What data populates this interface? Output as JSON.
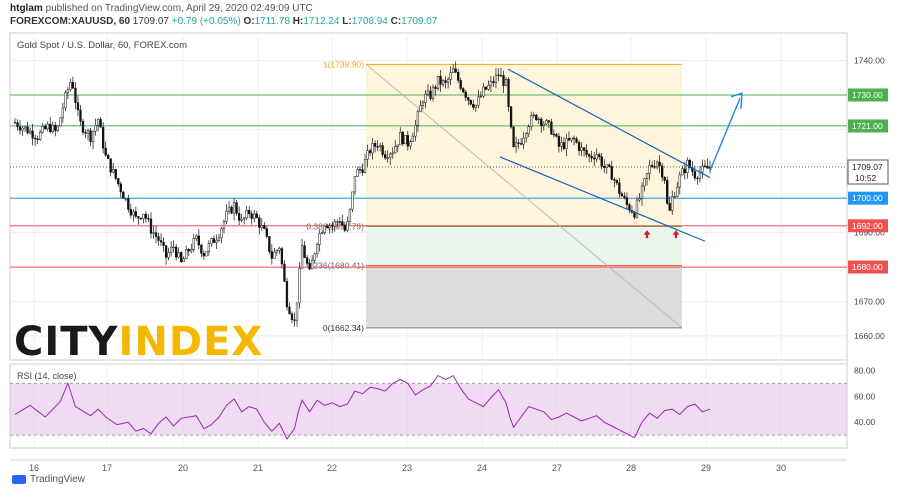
{
  "header": {
    "author": "htglam",
    "published": "published on TradingView.com, April 29, 2020 02:49:09 UTC",
    "symbol": "FOREXCOM:XAUUSD, 60",
    "last": "1709.07",
    "change": "+0.79 (+0.05%)",
    "ohlc_o_label": "O:",
    "ohlc_o": "1711.78",
    "ohlc_h_label": "H:",
    "ohlc_h": "1712.24",
    "ohlc_l_label": "L:",
    "ohlc_l": "1708.94",
    "ohlc_c_label": "C:",
    "ohlc_c": "1709.07"
  },
  "chart_title": "Gold Spot / U.S. Dollar, 60, FOREX.com",
  "logo_text": "CITYINDEX",
  "footer_brand": "TradingView",
  "colors": {
    "up": "#26a69a",
    "down": "#ef5350",
    "green_line": "#4caf50",
    "blue_line": "#2196f3",
    "red_line": "#ef5350",
    "rsi": "#9c27b0",
    "rsi_band": "#e1bee7",
    "fib_top": "#fff3d6",
    "fib_mid": "#e8f5e9",
    "fib_bot": "#d6d6d6",
    "arrow": "#1e88e5",
    "logo_dark": "#1a1a1a",
    "logo_yellow": "#f5b800"
  },
  "chart_data": [
    {
      "type": "candlestick",
      "title": "Gold Spot / U.S. Dollar, 60, FOREX.com",
      "ylim": [
        1653,
        1748
      ],
      "y_ticks": [
        "1740.00",
        "1730.00",
        "1720.00",
        "1710.00",
        "1700.00",
        "1690.00",
        "1680.00",
        "1670.00",
        "1660.00"
      ],
      "x_ticks": [
        "16",
        "17",
        "20",
        "21",
        "22",
        "23",
        "24",
        "27",
        "28",
        "29",
        "30"
      ],
      "current_price": "1709.07",
      "countdown": "10:52",
      "horizontal_levels": [
        {
          "label": "1730.00",
          "value": 1730.0,
          "color": "#4caf50"
        },
        {
          "label": "1721.00",
          "value": 1721.0,
          "color": "#4caf50"
        },
        {
          "label": "1700.00",
          "value": 1700.0,
          "color": "#2196f3"
        },
        {
          "label": "1692.00",
          "value": 1692.0,
          "color": "#ef5350"
        },
        {
          "label": "1680.00",
          "value": 1680.0,
          "color": "#ef5350"
        }
      ],
      "fib_labels": [
        {
          "text": "1(1738.90)",
          "value": 1738.9
        },
        {
          "text": "0.382(1691.79)",
          "value": 1691.79
        },
        {
          "text": "0.236(1680.41)",
          "value": 1680.41
        },
        {
          "text": "0(1662.34)",
          "value": 1662.34
        }
      ],
      "price_path": [
        [
          0,
          1722
        ],
        [
          1.5,
          1720
        ],
        [
          3,
          1718
        ],
        [
          4.5,
          1721
        ],
        [
          5.5,
          1719
        ],
        [
          6.5,
          1728
        ],
        [
          7.5,
          1735
        ],
        [
          8.5,
          1722
        ],
        [
          10,
          1718
        ],
        [
          11,
          1723
        ],
        [
          12,
          1712
        ],
        [
          13.5,
          1705
        ],
        [
          15,
          1698
        ],
        [
          16,
          1694
        ],
        [
          17,
          1696
        ],
        [
          18,
          1691
        ],
        [
          19,
          1688
        ],
        [
          20,
          1683
        ],
        [
          21,
          1686
        ],
        [
          22,
          1681
        ],
        [
          23,
          1685
        ],
        [
          24,
          1688
        ],
        [
          25,
          1684
        ],
        [
          26,
          1687
        ],
        [
          27,
          1690
        ],
        [
          28,
          1695
        ],
        [
          29,
          1698
        ],
        [
          30,
          1693
        ],
        [
          31,
          1696
        ],
        [
          32,
          1694
        ],
        [
          33,
          1690
        ],
        [
          34,
          1683
        ],
        [
          35,
          1686
        ],
        [
          36,
          1670
        ],
        [
          37,
          1664
        ],
        [
          37.5,
          1674
        ],
        [
          38,
          1686
        ],
        [
          39,
          1678
        ],
        [
          40,
          1688
        ],
        [
          41,
          1693
        ],
        [
          42,
          1692
        ],
        [
          43,
          1694
        ],
        [
          43.8,
          1690
        ],
        [
          44.5,
          1698
        ],
        [
          45,
          1707
        ],
        [
          46,
          1709
        ],
        [
          47,
          1714
        ],
        [
          48,
          1716
        ],
        [
          49,
          1713
        ],
        [
          50,
          1714
        ],
        [
          51,
          1718
        ],
        [
          52,
          1716
        ],
        [
          53,
          1721
        ],
        [
          54,
          1729
        ],
        [
          55,
          1730
        ],
        [
          56,
          1734
        ],
        [
          57,
          1733
        ],
        [
          58,
          1737
        ],
        [
          59,
          1733
        ],
        [
          60,
          1729
        ],
        [
          61,
          1727
        ],
        [
          62,
          1731
        ],
        [
          63,
          1733
        ],
        [
          64,
          1736
        ],
        [
          65,
          1733
        ],
        [
          65.5,
          1722
        ],
        [
          66,
          1714
        ],
        [
          67,
          1717
        ],
        [
          68,
          1722
        ],
        [
          69,
          1724
        ],
        [
          70,
          1722
        ],
        [
          71,
          1720
        ],
        [
          72,
          1715
        ],
        [
          73,
          1716
        ],
        [
          74,
          1717
        ],
        [
          75,
          1714
        ],
        [
          76,
          1712
        ],
        [
          77,
          1713
        ],
        [
          78,
          1709
        ],
        [
          79,
          1707
        ],
        [
          80,
          1702
        ],
        [
          81,
          1698
        ],
        [
          82,
          1696
        ],
        [
          83,
          1702
        ],
        [
          84,
          1709
        ],
        [
          85,
          1711
        ],
        [
          86,
          1706
        ],
        [
          86.5,
          1694
        ],
        [
          87,
          1700
        ],
        [
          88,
          1706
        ],
        [
          89,
          1710
        ],
        [
          90,
          1707
        ],
        [
          91,
          1708
        ],
        [
          92,
          1709
        ]
      ]
    },
    {
      "type": "line",
      "title": "RSI (14, close)",
      "ylim": [
        20,
        85
      ],
      "y_ticks": [
        "80.00",
        "60.00",
        "40.00"
      ],
      "band": [
        30,
        70
      ],
      "values": [
        [
          0,
          46
        ],
        [
          2,
          53
        ],
        [
          4,
          44
        ],
        [
          6,
          56
        ],
        [
          7,
          70
        ],
        [
          8,
          52
        ],
        [
          10,
          45
        ],
        [
          11,
          50
        ],
        [
          12,
          44
        ],
        [
          13.5,
          38
        ],
        [
          15,
          40
        ],
        [
          16,
          33
        ],
        [
          17,
          35
        ],
        [
          18,
          31
        ],
        [
          19,
          39
        ],
        [
          20,
          44
        ],
        [
          21,
          37
        ],
        [
          22,
          43
        ],
        [
          24,
          45
        ],
        [
          25,
          35
        ],
        [
          26,
          38
        ],
        [
          27,
          44
        ],
        [
          28,
          53
        ],
        [
          29,
          58
        ],
        [
          30,
          48
        ],
        [
          31,
          52
        ],
        [
          32,
          50
        ],
        [
          33,
          40
        ],
        [
          34,
          33
        ],
        [
          35,
          39
        ],
        [
          36,
          27
        ],
        [
          37,
          35
        ],
        [
          37.5,
          48
        ],
        [
          38,
          57
        ],
        [
          39,
          48
        ],
        [
          40,
          57
        ],
        [
          41,
          53
        ],
        [
          42,
          55
        ],
        [
          43,
          52
        ],
        [
          44,
          54
        ],
        [
          45,
          64
        ],
        [
          46,
          62
        ],
        [
          47,
          67
        ],
        [
          48,
          66
        ],
        [
          49,
          64
        ],
        [
          50,
          70
        ],
        [
          51,
          73
        ],
        [
          52,
          70
        ],
        [
          53,
          61
        ],
        [
          54,
          65
        ],
        [
          55,
          68
        ],
        [
          56,
          76
        ],
        [
          57,
          73
        ],
        [
          58,
          76
        ],
        [
          59,
          66
        ],
        [
          60,
          58
        ],
        [
          61,
          55
        ],
        [
          62,
          52
        ],
        [
          63,
          59
        ],
        [
          64,
          65
        ],
        [
          65,
          55
        ],
        [
          65.5,
          44
        ],
        [
          66,
          36
        ],
        [
          67,
          44
        ],
        [
          68,
          52
        ],
        [
          69,
          50
        ],
        [
          70,
          48
        ],
        [
          71,
          42
        ],
        [
          72,
          44
        ],
        [
          73,
          47
        ],
        [
          74,
          44
        ],
        [
          75,
          41
        ],
        [
          76,
          43
        ],
        [
          77,
          45
        ],
        [
          78,
          40
        ],
        [
          79,
          37
        ],
        [
          80,
          34
        ],
        [
          81,
          31
        ],
        [
          82,
          28
        ],
        [
          83,
          40
        ],
        [
          84,
          47
        ],
        [
          85,
          43
        ],
        [
          86,
          49
        ],
        [
          87,
          50
        ],
        [
          88,
          46
        ],
        [
          89,
          52
        ],
        [
          90,
          54
        ],
        [
          91,
          48
        ],
        [
          92,
          50
        ]
      ]
    }
  ]
}
